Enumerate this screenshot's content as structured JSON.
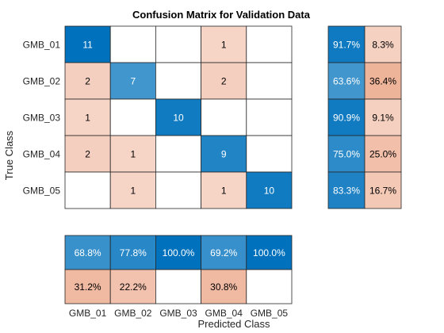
{
  "chart_data": {
    "type": "heatmap",
    "title": "Confusion Matrix for Validation Data",
    "xlabel": "Predicted Class",
    "ylabel": "True Class",
    "classes": [
      "GMB_01",
      "GMB_02",
      "GMB_03",
      "GMB_04",
      "GMB_05"
    ],
    "matrix": [
      [
        11,
        0,
        0,
        1,
        0
      ],
      [
        2,
        7,
        0,
        2,
        0
      ],
      [
        1,
        0,
        10,
        0,
        0
      ],
      [
        2,
        1,
        0,
        9,
        0
      ],
      [
        0,
        1,
        0,
        1,
        10
      ]
    ],
    "row_summary": [
      [
        "91.7%",
        "8.3%"
      ],
      [
        "63.6%",
        "36.4%"
      ],
      [
        "90.9%",
        "9.1%"
      ],
      [
        "75.0%",
        "25.0%"
      ],
      [
        "83.3%",
        "16.7%"
      ]
    ],
    "column_summary": {
      "correct": [
        "68.8%",
        "77.8%",
        "100.0%",
        "69.2%",
        "100.0%"
      ],
      "incorrect": [
        "31.2%",
        "22.2%",
        "",
        "30.8%",
        ""
      ]
    },
    "colors": {
      "correct_max": "#0072BD",
      "incorrect_max": "#D95319",
      "border": "#262626",
      "background": "#FFFFFF"
    }
  }
}
